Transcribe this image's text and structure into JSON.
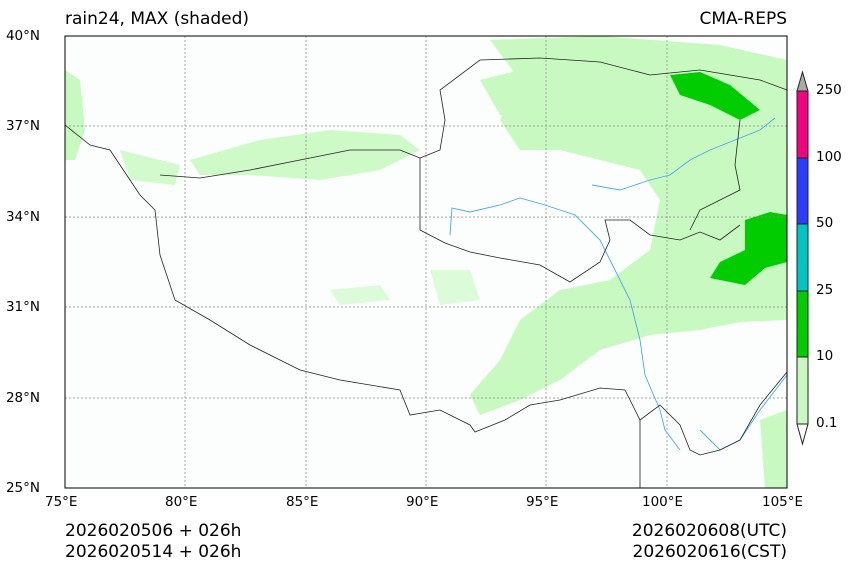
{
  "header": {
    "left_title": "rain24, MAX (shaded)",
    "right_title": "CMA-REPS"
  },
  "axes": {
    "lat_ticks": [
      "40°N",
      "37°N",
      "34°N",
      "31°N",
      "28°N",
      "25°N"
    ],
    "lon_ticks": [
      "75°E",
      "80°E",
      "85°E",
      "90°E",
      "95°E",
      "100°E",
      "105°E"
    ],
    "lat_range": [
      25,
      40
    ],
    "lon_range": [
      75,
      105
    ]
  },
  "colorbar": {
    "labels": [
      "250",
      "100",
      "50",
      "25",
      "10",
      "0.1"
    ],
    "colors": {
      "over": "#a9a9a9",
      "100-250": "#f0047f",
      "50-100": "#2b3cff",
      "25-50": "#00c5c5",
      "10-25": "#00cc00",
      "0.1-10": "#c8f9c1",
      "under": "#ffffff"
    }
  },
  "footer": {
    "init_utc": "2026020506  +  026h",
    "init_cst": "2026020514  +  026h",
    "valid_utc": "2026020608(UTC)",
    "valid_cst": "2026020616(CST)"
  }
}
